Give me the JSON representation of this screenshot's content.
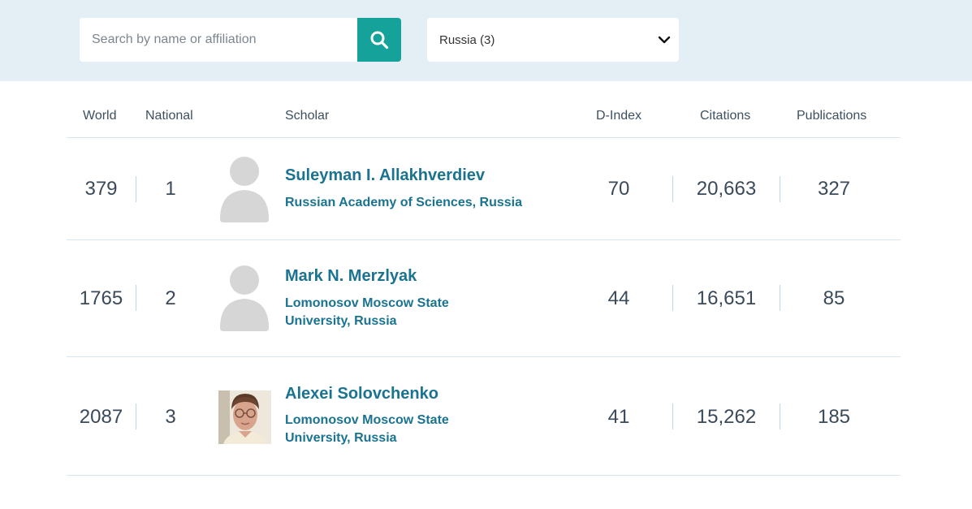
{
  "search": {
    "placeholder": "Search by name or affiliation"
  },
  "filter": {
    "selected": "Russia (3)"
  },
  "table": {
    "headers": {
      "world": "World",
      "national": "National",
      "scholar": "Scholar",
      "dindex": "D-Index",
      "citations": "Citations",
      "publications": "Publications"
    },
    "rows": [
      {
        "world": "379",
        "national": "1",
        "name": "Suleyman I. Allakhverdiev",
        "affiliation_line1": "Russian Academy of Sciences, Russia",
        "affiliation_line2": "",
        "dindex": "70",
        "citations": "20,663",
        "publications": "327",
        "avatar": "placeholder-avatar-icon"
      },
      {
        "world": "1765",
        "national": "2",
        "name": "Mark N. Merzlyak",
        "affiliation_line1": "Lomonosov Moscow State",
        "affiliation_line2": "University, Russia",
        "dindex": "44",
        "citations": "16,651",
        "publications": "85",
        "avatar": "placeholder-avatar-icon"
      },
      {
        "world": "2087",
        "national": "3",
        "name": "Alexei Solovchenko",
        "affiliation_line1": "Lomonosov Moscow State",
        "affiliation_line2": "University, Russia",
        "dindex": "41",
        "citations": "15,262",
        "publications": "185",
        "avatar": "profile-photo"
      }
    ]
  },
  "colors": {
    "topbar_bg": "#e3eff5",
    "accent": "#14a29a",
    "link": "#1a7390",
    "divider": "#d6e6ee"
  }
}
